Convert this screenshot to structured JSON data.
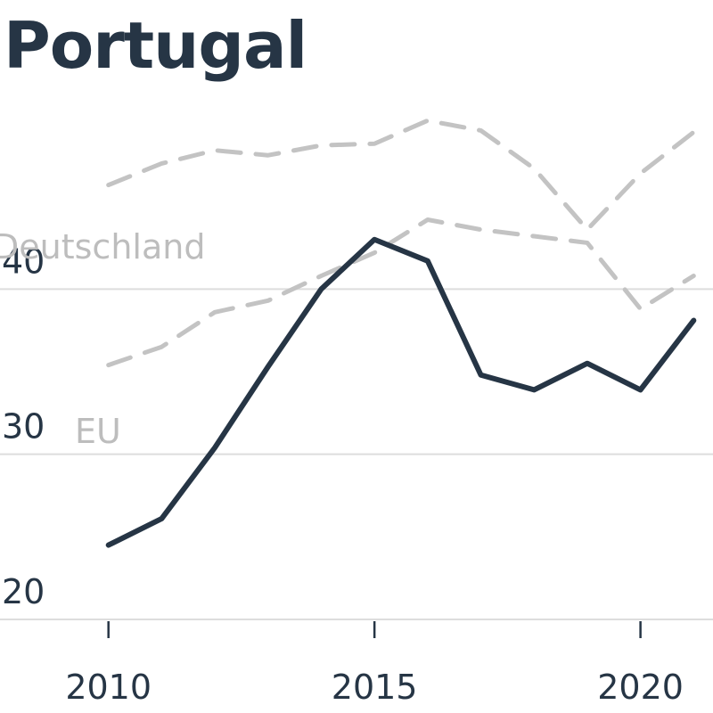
{
  "header": {
    "title": "Portugal"
  },
  "chart_data": {
    "type": "line",
    "title": "Portugal",
    "xlabel": "",
    "ylabel": "",
    "xlim": [
      2009,
      2022
    ],
    "ylim": [
      20,
      50
    ],
    "x_ticks": [
      2010,
      2015,
      2020
    ],
    "y_ticks": [
      20,
      30,
      40
    ],
    "grid": "horizontal",
    "legend": "none",
    "colors": {
      "main": "#263545",
      "comparison": "#c3c3c3",
      "axis_text": "#263545",
      "series_label": "#bdbdbd",
      "grid": "#dddddd"
    },
    "series": [
      {
        "name": "",
        "style": "solid",
        "x": [
          2010,
          2011,
          2012,
          2013,
          2014,
          2015,
          2016,
          2017,
          2018,
          2019,
          2020,
          2021
        ],
        "values": [
          24.5,
          26.1,
          30.4,
          35.3,
          40,
          43.0,
          41.7,
          34.8,
          33.9,
          35.5,
          33.9,
          38.1
        ]
      },
      {
        "name": "Deutschland",
        "style": "dashed",
        "x": [
          2010,
          2011,
          2012,
          2013,
          2014,
          2015,
          2016,
          2017,
          2018,
          2019,
          2020,
          2021
        ],
        "values": [
          46.3,
          47.6,
          48.4,
          48.1,
          48.7,
          48.8,
          50.2,
          49.6,
          47.3,
          43.6,
          47.0,
          49.5
        ]
      },
      {
        "name": "EU",
        "style": "dashed",
        "x": [
          2010,
          2011,
          2012,
          2013,
          2014,
          2015,
          2016,
          2017,
          2018,
          2019,
          2020,
          2021
        ],
        "values": [
          35.4,
          36.5,
          38.6,
          39.3,
          40.8,
          42.2,
          44.2,
          43.6,
          43.2,
          42.8,
          38.8,
          40.8
        ]
      }
    ]
  }
}
